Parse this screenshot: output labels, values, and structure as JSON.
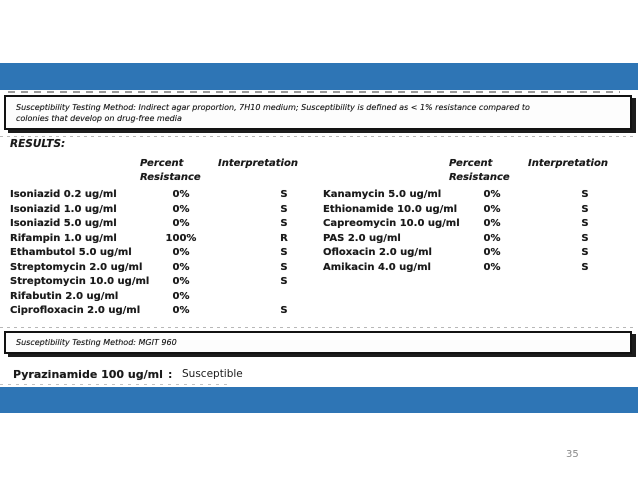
{
  "slide": {
    "page_number": "35"
  },
  "method_box_top": {
    "line1": "Susceptibility Testing Method: Indirect agar proportion, 7H10 medium; Susceptibility is defined as < 1% resistance compared to",
    "line2": "colonies that develop on drug-free media"
  },
  "results_label": "RESULTS:",
  "table_headers": {
    "percent": "Percent",
    "resistance": "Resistance",
    "interpretation": "Interpretation"
  },
  "left_table": {
    "rows": [
      {
        "drug": "Isoniazid 0.2 ug/ml",
        "percent": "0%",
        "interpretation": "S"
      },
      {
        "drug": "Isoniazid 1.0 ug/ml",
        "percent": "0%",
        "interpretation": "S"
      },
      {
        "drug": "Isoniazid 5.0 ug/ml",
        "percent": "0%",
        "interpretation": "S"
      },
      {
        "drug": "Rifampin 1.0 ug/ml",
        "percent": "100%",
        "interpretation": "R"
      },
      {
        "drug": "Ethambutol 5.0 ug/ml",
        "percent": "0%",
        "interpretation": "S"
      },
      {
        "drug": "Streptomycin 2.0 ug/ml",
        "percent": "0%",
        "interpretation": "S"
      },
      {
        "drug": "Streptomycin 10.0 ug/ml",
        "percent": "0%",
        "interpretation": "S"
      },
      {
        "drug": "Rifabutin 2.0 ug/ml",
        "percent": "0%",
        "interpretation": ""
      },
      {
        "drug": "Ciprofloxacin 2.0 ug/ml",
        "percent": "0%",
        "interpretation": "S"
      }
    ]
  },
  "right_table": {
    "rows": [
      {
        "drug": "Kanamycin 5.0 ug/ml",
        "percent": "0%",
        "interpretation": "S"
      },
      {
        "drug": "Ethionamide 10.0 ug/ml",
        "percent": "0%",
        "interpretation": "S"
      },
      {
        "drug": "Capreomycin 10.0 ug/ml",
        "percent": "0%",
        "interpretation": "S"
      },
      {
        "drug": "PAS 2.0 ug/ml",
        "percent": "0%",
        "interpretation": "S"
      },
      {
        "drug": "Ofloxacin 2.0 ug/ml",
        "percent": "0%",
        "interpretation": "S"
      },
      {
        "drug": "Amikacin 4.0 ug/ml",
        "percent": "0%",
        "interpretation": "S"
      }
    ]
  },
  "method_box_bottom": {
    "text": "Susceptibility Testing Method: MGIT 960"
  },
  "pyrazinamide": {
    "drug": "Pyrazinamide 100 ug/ml",
    "separator": ":",
    "result": "Susceptible"
  },
  "colors": {
    "accent_blue": "#2E75B5",
    "page_number_gray": "#8a8a8a"
  }
}
